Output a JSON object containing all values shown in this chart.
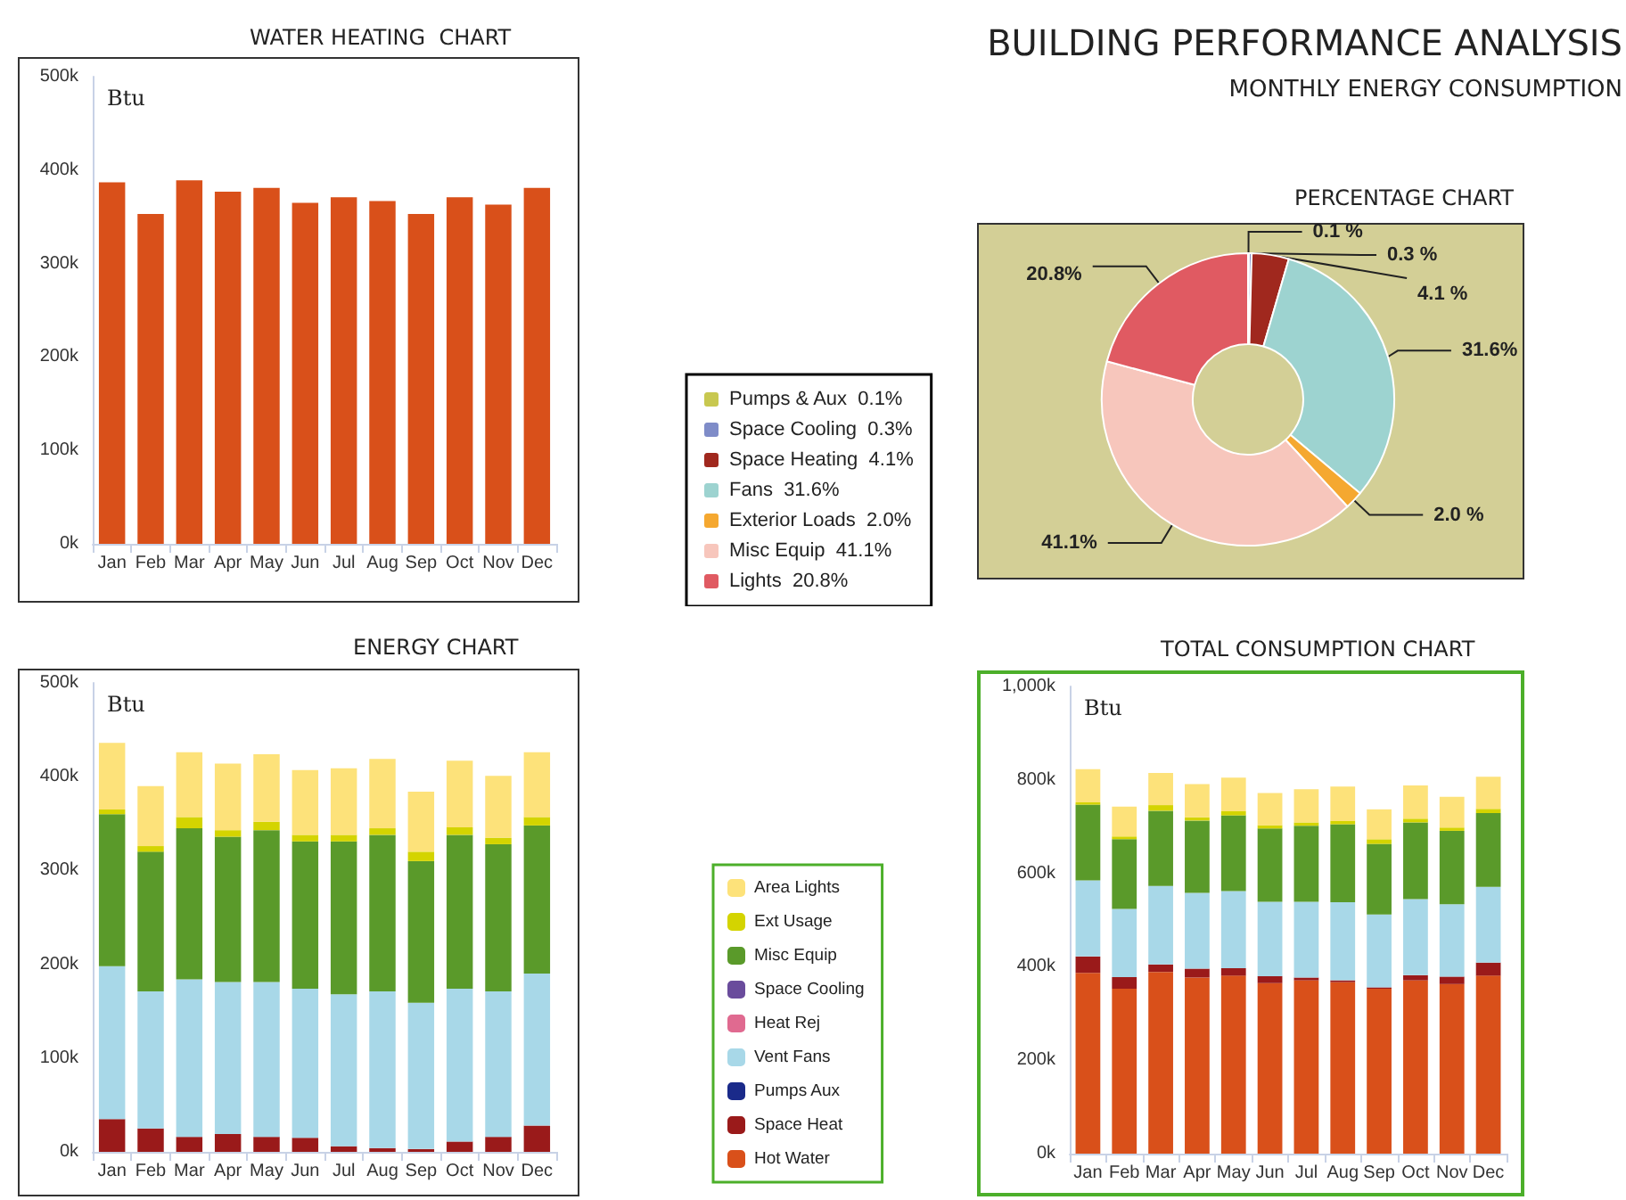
{
  "chart_data": [
    {
      "type": "bar",
      "title": "WATER HEATING  CHART",
      "ylabel": "Btu",
      "categories": [
        "Jan",
        "Feb",
        "Mar",
        "Apr",
        "May",
        "Jun",
        "Jul",
        "Aug",
        "Sep",
        "Oct",
        "Nov",
        "Dec"
      ],
      "values": [
        387000,
        353000,
        389000,
        377000,
        381000,
        365000,
        371000,
        367000,
        353000,
        371000,
        363000,
        381000
      ],
      "color": "#d9501a",
      "ylim": [
        0,
        500000
      ],
      "yticks": [
        {
          "value": 0,
          "label": "0k"
        },
        {
          "value": 100000,
          "label": "100k"
        },
        {
          "value": 200000,
          "label": "200k"
        },
        {
          "value": 300000,
          "label": "300k"
        },
        {
          "value": 400000,
          "label": "400k"
        },
        {
          "value": 500000,
          "label": "500k"
        }
      ],
      "grid": false
    },
    {
      "type": "donut",
      "title": "PERCENTAGE CHART",
      "annotations": [
        "BUILDING PERFORMANCE ANALYSIS",
        "MONTHLY ENERGY CONSUMPTION"
      ],
      "categories": [
        "Pumps & Aux  0.1%",
        "Space Cooling  0.3%",
        "Space Heating  4.1%",
        "Fans  31.6%",
        "Exterior Loads  2.0%",
        "Misc Equip  41.1%",
        "Lights  20.8%"
      ],
      "values": [
        0.1,
        0.3,
        4.1,
        31.6,
        2.0,
        41.1,
        20.8
      ],
      "value_labels": [
        "0.1 %",
        "0.3 %",
        "4.1 %",
        "31.6%",
        "2.0 %",
        "41.1%",
        "20.8%"
      ],
      "colors": [
        "#c8c850",
        "#7f8cc8",
        "#a0281e",
        "#9dd3d0",
        "#f5a830",
        "#f7c6bc",
        "#e05a62"
      ],
      "legend": "left"
    },
    {
      "type": "bar",
      "title": "ENERGY CHART",
      "ylabel": "Btu",
      "stacked": true,
      "categories": [
        "Jan",
        "Feb",
        "Mar",
        "Apr",
        "May",
        "Jun",
        "Jul",
        "Aug",
        "Sep",
        "Oct",
        "Nov",
        "Dec"
      ],
      "series": [
        {
          "color": "#9a1a1a",
          "values": [
            35000,
            25000,
            16000,
            19000,
            16000,
            15000,
            6000,
            4000,
            3000,
            11000,
            16000,
            28000
          ]
        },
        {
          "color": "#a8d8e8",
          "values": [
            163000,
            146000,
            168000,
            162000,
            165000,
            159000,
            162000,
            167000,
            156000,
            163000,
            155000,
            162000
          ]
        },
        {
          "color": "#5a9a2a",
          "values": [
            162000,
            149000,
            161000,
            155000,
            162000,
            157000,
            163000,
            167000,
            151000,
            164000,
            157000,
            158000
          ]
        },
        {
          "color": "#d4d400",
          "values": [
            5000,
            6000,
            12000,
            7000,
            9000,
            7000,
            7000,
            7000,
            10000,
            8000,
            7000,
            9000
          ]
        },
        {
          "color": "#fde27a",
          "values": [
            71000,
            64000,
            69000,
            71000,
            72000,
            69000,
            71000,
            74000,
            64000,
            71000,
            66000,
            69000
          ]
        }
      ],
      "ylim": [
        0,
        500000
      ],
      "yticks": [
        {
          "value": 0,
          "label": "0k"
        },
        {
          "value": 100000,
          "label": "100k"
        },
        {
          "value": 200000,
          "label": "200k"
        },
        {
          "value": 300000,
          "label": "300k"
        },
        {
          "value": 400000,
          "label": "400k"
        },
        {
          "value": 500000,
          "label": "500k"
        }
      ],
      "grid": false
    },
    {
      "type": "bar",
      "title": "TOTAL CONSUMPTION CHART",
      "ylabel": "Btu",
      "stacked": true,
      "legend": "left",
      "categories": [
        "Jan",
        "Feb",
        "Mar",
        "Apr",
        "May",
        "Jun",
        "Jul",
        "Aug",
        "Sep",
        "Oct",
        "Nov",
        "Dec"
      ],
      "series": [
        {
          "name": "Hot Water",
          "color": "#d9501a",
          "values": [
            387000,
            353000,
            389000,
            377000,
            381000,
            365000,
            371000,
            367000,
            353000,
            371000,
            363000,
            381000
          ]
        },
        {
          "name": "Space Heat",
          "color": "#9a1a1a",
          "values": [
            35000,
            25000,
            16000,
            19000,
            16000,
            15000,
            6000,
            4000,
            3000,
            11000,
            16000,
            28000
          ]
        },
        {
          "name": "Pumps Aux",
          "color": "#1a2a8a",
          "values": [
            0,
            0,
            0,
            0,
            0,
            0,
            0,
            0,
            0,
            0,
            0,
            0
          ]
        },
        {
          "name": "Vent Fans",
          "color": "#a8d8e8",
          "values": [
            163000,
            146000,
            168000,
            162000,
            165000,
            159000,
            162000,
            167000,
            156000,
            163000,
            155000,
            162000
          ]
        },
        {
          "name": "Heat Rej",
          "color": "#e06a90",
          "values": [
            0,
            0,
            0,
            0,
            0,
            0,
            0,
            0,
            0,
            0,
            0,
            0
          ]
        },
        {
          "name": "Space Cooling",
          "color": "#6a4c9c",
          "values": [
            0,
            0,
            0,
            0,
            0,
            0,
            0,
            0,
            0,
            0,
            0,
            0
          ]
        },
        {
          "name": "Misc Equip",
          "color": "#5a9a2a",
          "values": [
            162000,
            149000,
            161000,
            155000,
            162000,
            157000,
            163000,
            167000,
            151000,
            164000,
            157000,
            158000
          ]
        },
        {
          "name": "Ext Usage",
          "color": "#d4d400",
          "values": [
            5000,
            6000,
            12000,
            7000,
            9000,
            7000,
            7000,
            7000,
            10000,
            8000,
            7000,
            9000
          ]
        },
        {
          "name": "Area Lights",
          "color": "#fde27a",
          "values": [
            71000,
            64000,
            69000,
            71000,
            72000,
            69000,
            71000,
            74000,
            64000,
            71000,
            66000,
            69000
          ]
        }
      ],
      "ylim": [
        0,
        1000000
      ],
      "yticks": [
        {
          "value": 0,
          "label": "0k"
        },
        {
          "value": 200000,
          "label": "200k"
        },
        {
          "value": 400000,
          "label": "400k"
        },
        {
          "value": 600000,
          "label": "600k"
        },
        {
          "value": 800000,
          "label": "800k"
        },
        {
          "value": 1000000,
          "label": "1,000k"
        }
      ],
      "grid": false
    }
  ]
}
